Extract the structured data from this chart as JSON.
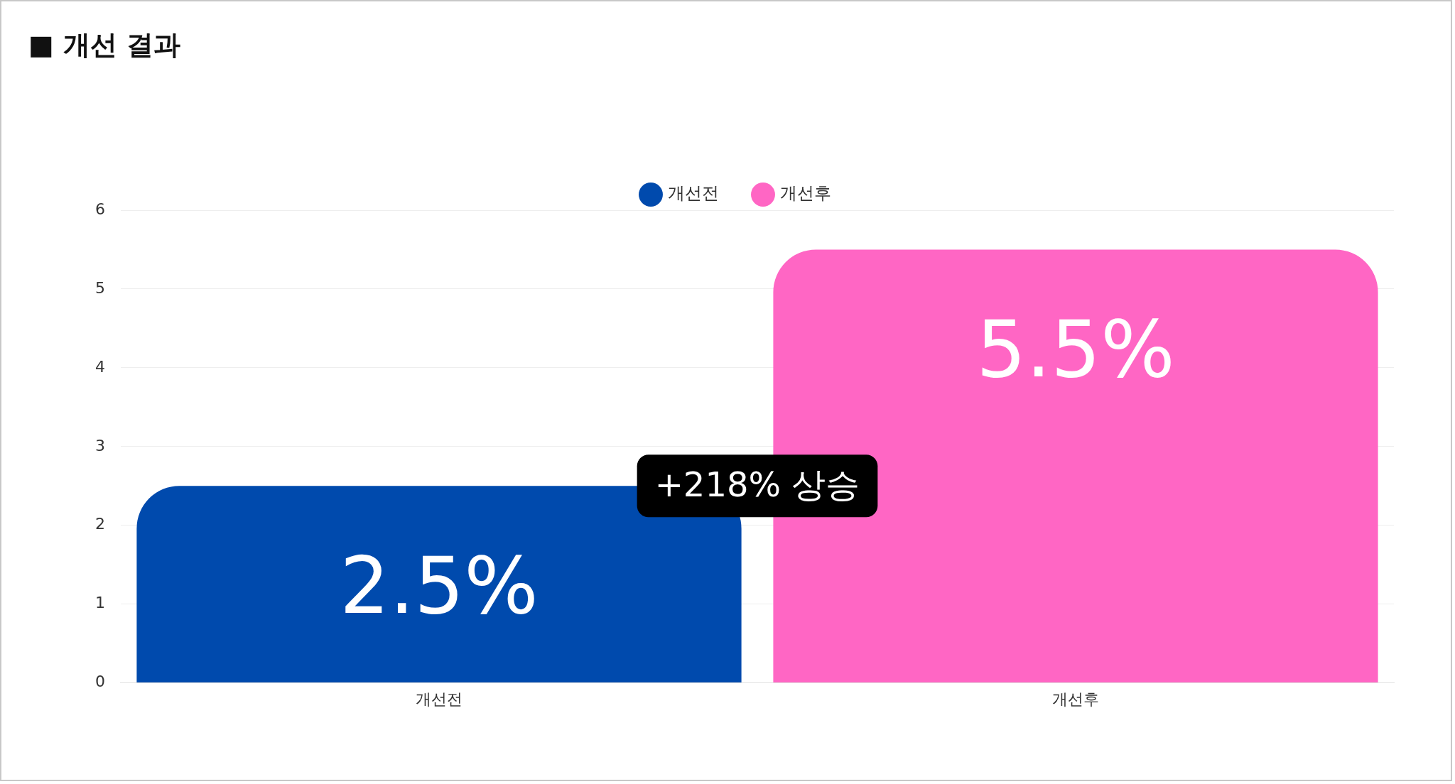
{
  "chart_data": {
    "type": "bar",
    "title": "■ 개선 결과",
    "categories": [
      "개선전",
      "개선후"
    ],
    "series": [
      {
        "name": "개선전",
        "color": "#004aad",
        "values": [
          2.5,
          null
        ],
        "value_labels": [
          "2.5%",
          null
        ]
      },
      {
        "name": "개선후",
        "color": "#ff66c4",
        "values": [
          null,
          5.5
        ],
        "value_labels": [
          null,
          "5.5%"
        ]
      }
    ],
    "annotations": [
      "+218% 상승"
    ],
    "ylim": [
      0,
      6
    ],
    "yticks": [
      0,
      1,
      2,
      3,
      4,
      5,
      6
    ],
    "grid": "y",
    "legend": "top"
  }
}
